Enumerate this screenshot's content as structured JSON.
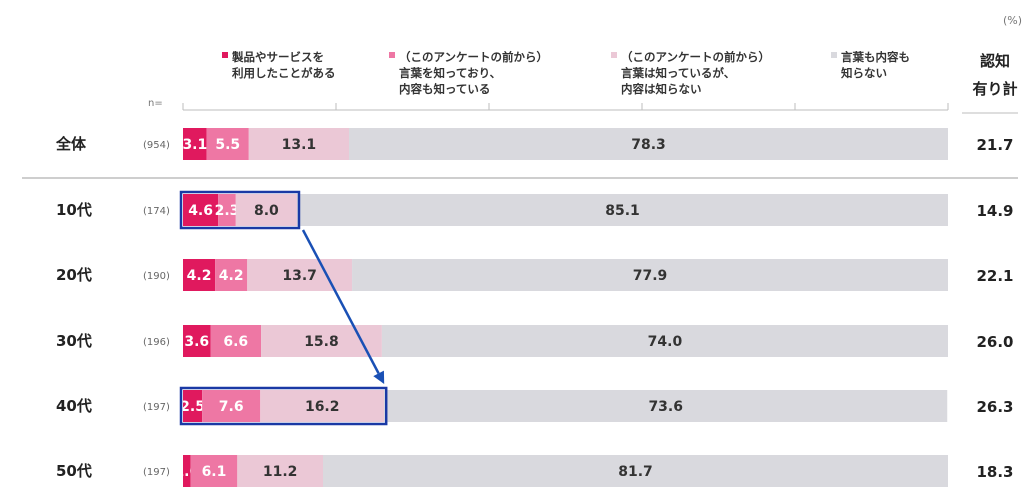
{
  "colors": {
    "s1": "#e0195e",
    "s2": "#ee77a4",
    "s3": "#ebc8d6",
    "s4": "#d9d9de",
    "highlight": "#1a39a5",
    "arrow": "#1a50b5"
  },
  "header": {
    "unit": "(%)",
    "n_label": "n=",
    "total_header_line1": "認知",
    "total_header_line2": "有り計"
  },
  "chart_data": {
    "type": "bar",
    "orientation": "horizontal",
    "stacked": true,
    "xlim": [
      0,
      100
    ],
    "series": [
      {
        "name_lines": [
          "製品やサービスを",
          "利用したことがある"
        ],
        "values": [
          3.1,
          4.6,
          4.2,
          3.6,
          2.5,
          1.0
        ]
      },
      {
        "name_lines": [
          "（このアンケートの前から）",
          "言葉を知っており、",
          "内容も知っている"
        ],
        "values": [
          5.5,
          2.3,
          4.2,
          6.6,
          7.6,
          6.1
        ]
      },
      {
        "name_lines": [
          "（このアンケートの前から）",
          "言葉は知っているが、",
          "内容は知らない"
        ],
        "values": [
          13.1,
          8.0,
          13.7,
          15.8,
          16.2,
          11.2
        ]
      },
      {
        "name_lines": [
          "言葉も内容も",
          "知らない"
        ],
        "values": [
          78.3,
          85.1,
          77.9,
          74.0,
          73.6,
          81.7
        ]
      }
    ],
    "categories": [
      {
        "label": "全体",
        "n": "(954)",
        "total": "21.7"
      },
      {
        "label": "10代",
        "n": "(174)",
        "total": "14.9"
      },
      {
        "label": "20代",
        "n": "(190)",
        "total": "22.1"
      },
      {
        "label": "30代",
        "n": "(196)",
        "total": "26.0"
      },
      {
        "label": "40代",
        "n": "(197)",
        "total": "26.3"
      },
      {
        "label": "50代",
        "n": "(197)",
        "total": "18.3"
      }
    ],
    "highlighted_rows": [
      1,
      4
    ]
  }
}
